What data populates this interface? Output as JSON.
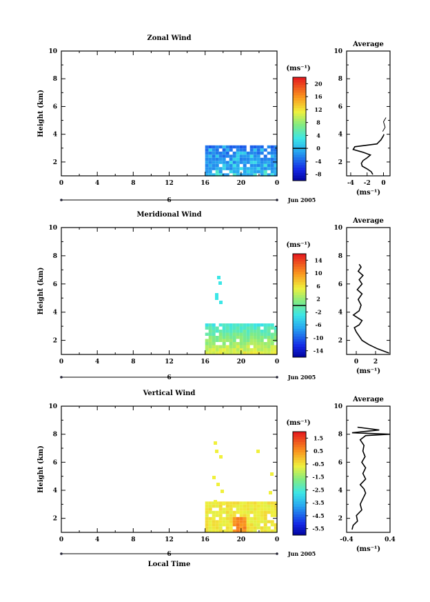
{
  "chart_data": [
    {
      "type": "heatmap",
      "title": "Zonal Wind",
      "ylabel": "Height (km)",
      "xlabel": "",
      "date_label": "Jun 2005",
      "unit_label": "(ms⁻¹)",
      "ylim": [
        1,
        10
      ],
      "xlim": [
        0,
        24
      ],
      "x_ticks": [
        "0",
        "4",
        "8",
        "12",
        "16",
        "20",
        "0"
      ],
      "y_ticks": [
        "2",
        "4",
        "6",
        "8",
        "10"
      ],
      "day_label": "6",
      "colorbar": {
        "min": -10,
        "max": 22,
        "ticks": [
          "20",
          "16",
          "12",
          "8",
          "4",
          "0",
          "-4",
          "-8"
        ],
        "zero_line": 0
      },
      "data_region": {
        "x": [
          16,
          23.8
        ],
        "y": [
          1,
          3.2
        ]
      },
      "profile": {
        "title": "Average",
        "xlabel": "(ms⁻¹)",
        "x_ticks": [
          "-4",
          "-2",
          "0"
        ],
        "xlim": [
          -4.5,
          0.8
        ],
        "y_ticks": [
          "2",
          "4",
          "6",
          "8",
          "10"
        ],
        "points": [
          [
            -1.3,
            1.1
          ],
          [
            -1.5,
            1.3
          ],
          [
            -2.0,
            1.5
          ],
          [
            -2.6,
            1.7
          ],
          [
            -2.7,
            1.9
          ],
          [
            -2.5,
            2.1
          ],
          [
            -2.0,
            2.3
          ],
          [
            -1.6,
            2.5
          ],
          [
            -2.5,
            2.7
          ],
          [
            -3.7,
            2.9
          ],
          [
            -3.5,
            3.1
          ],
          [
            -0.8,
            3.3
          ],
          [
            -0.3,
            3.6
          ],
          [
            0,
            3.9
          ],
          [
            0.05,
            4.0
          ]
        ],
        "upper_points": [
          [
            -0.1,
            4.2
          ],
          [
            0.2,
            4.5
          ],
          [
            0.0,
            4.9
          ],
          [
            0.3,
            5.2
          ]
        ]
      }
    },
    {
      "type": "heatmap",
      "title": "Meridional Wind",
      "ylabel": "Height (km)",
      "xlabel": "",
      "date_label": "Jun 2005",
      "unit_label": "(ms⁻¹)",
      "ylim": [
        1,
        10
      ],
      "xlim": [
        0,
        24
      ],
      "x_ticks": [
        "0",
        "4",
        "8",
        "12",
        "16",
        "20",
        "0"
      ],
      "y_ticks": [
        "2",
        "4",
        "6",
        "8",
        "10"
      ],
      "day_label": "6",
      "colorbar": {
        "min": -16,
        "max": 16,
        "ticks": [
          "14",
          "10",
          "6",
          "2",
          "-2",
          "-6",
          "-10",
          "-14"
        ],
        "zero_line": 0
      },
      "data_region": {
        "x": [
          16,
          23.8
        ],
        "y": [
          1,
          3.2
        ]
      },
      "profile": {
        "title": "Average",
        "xlabel": "(ms⁻¹)",
        "x_ticks": [
          "0",
          "2"
        ],
        "xlim": [
          -1,
          3.5
        ],
        "y_ticks": [
          "2",
          "4",
          "6",
          "8",
          "10"
        ],
        "points": [
          [
            3.4,
            1.1
          ],
          [
            2.2,
            1.4
          ],
          [
            1.3,
            1.7
          ],
          [
            0.6,
            2.0
          ],
          [
            0.3,
            2.3
          ],
          [
            0.0,
            2.6
          ],
          [
            -0.2,
            2.9
          ],
          [
            0.3,
            3.1
          ],
          [
            0.6,
            3.4
          ],
          [
            -0.3,
            3.8
          ],
          [
            0.3,
            4.1
          ],
          [
            0.5,
            4.5
          ],
          [
            0.2,
            4.9
          ],
          [
            0.6,
            5.3
          ],
          [
            0.1,
            5.6
          ],
          [
            0.6,
            6.0
          ],
          [
            0.3,
            6.3
          ],
          [
            0.7,
            6.6
          ],
          [
            0.2,
            6.9
          ],
          [
            0.5,
            7.2
          ],
          [
            0.3,
            7.4
          ]
        ]
      }
    },
    {
      "type": "heatmap",
      "title": "Vertical Wind",
      "ylabel": "Height (km)",
      "xlabel": "Local Time",
      "date_label": "Jun 2005",
      "unit_label": "(ms⁻¹)",
      "ylim": [
        1,
        10
      ],
      "xlim": [
        0,
        24
      ],
      "x_ticks": [
        "0",
        "4",
        "8",
        "12",
        "16",
        "20",
        "0"
      ],
      "y_ticks": [
        "2",
        "4",
        "6",
        "8",
        "10"
      ],
      "day_label": "6",
      "colorbar": {
        "min": -6.5,
        "max": 2,
        "ticks": [
          "1.5",
          "0.5",
          "-0.5",
          "-1.5",
          "-2.5",
          "-3.5",
          "-4.5",
          "-5.5"
        ],
        "zero_line": null
      },
      "data_region": {
        "x": [
          16,
          23.8
        ],
        "y": [
          1,
          3.2
        ]
      },
      "profile": {
        "title": "Average",
        "xlabel": "(ms⁻¹)",
        "x_ticks": [
          "-0.4",
          "0.4"
        ],
        "xlim": [
          -0.4,
          0.4
        ],
        "y_ticks": [
          "2",
          "4",
          "6",
          "8",
          "10"
        ],
        "points": [
          [
            -0.3,
            1.2
          ],
          [
            -0.28,
            1.5
          ],
          [
            -0.2,
            1.8
          ],
          [
            -0.22,
            2.2
          ],
          [
            -0.12,
            2.6
          ],
          [
            -0.15,
            3.0
          ],
          [
            -0.1,
            3.4
          ],
          [
            -0.05,
            3.8
          ],
          [
            -0.08,
            4.1
          ],
          [
            -0.15,
            4.4
          ],
          [
            -0.05,
            4.8
          ],
          [
            -0.1,
            5.2
          ],
          [
            -0.05,
            5.6
          ],
          [
            -0.12,
            6.0
          ],
          [
            -0.06,
            6.4
          ],
          [
            -0.1,
            6.8
          ],
          [
            -0.08,
            7.2
          ],
          [
            -0.15,
            7.6
          ],
          [
            -0.05,
            7.9
          ],
          [
            0.4,
            8.0
          ],
          [
            -0.3,
            8.1
          ],
          [
            0.2,
            8.3
          ],
          [
            -0.2,
            8.5
          ]
        ]
      }
    }
  ]
}
